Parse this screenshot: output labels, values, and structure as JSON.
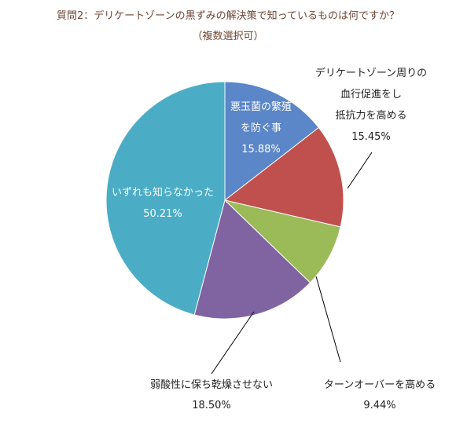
{
  "chart_data": {
    "type": "pie",
    "title": "質問2：デリケートゾーンの黒ずみの解決策で知っているものは何ですか？",
    "subtitle": "（複数選択可）",
    "slices": [
      {
        "label_lines": [
          "悪玉菌の繁殖",
          "を防ぐ事"
        ],
        "value": 15.88,
        "value_text": "15.88%",
        "color": "#5b86c8"
      },
      {
        "label_lines": [
          "デリケートゾーン周りの",
          "血行促進をし",
          "抵抗力を高める"
        ],
        "value": 15.45,
        "value_text": "15.45%",
        "color": "#c0504d"
      },
      {
        "label_lines": [
          "ターンオーバーを高める"
        ],
        "value": 9.44,
        "value_text": "9.44%",
        "color": "#9bbb59"
      },
      {
        "label_lines": [
          "弱酸性に保ち乾燥させない"
        ],
        "value": 18.5,
        "value_text": "18.50%",
        "color": "#8064a2"
      },
      {
        "label_lines": [
          "いずれも知らなかった"
        ],
        "value": 50.21,
        "value_text": "50.21%",
        "color": "#4bacc6"
      }
    ]
  }
}
